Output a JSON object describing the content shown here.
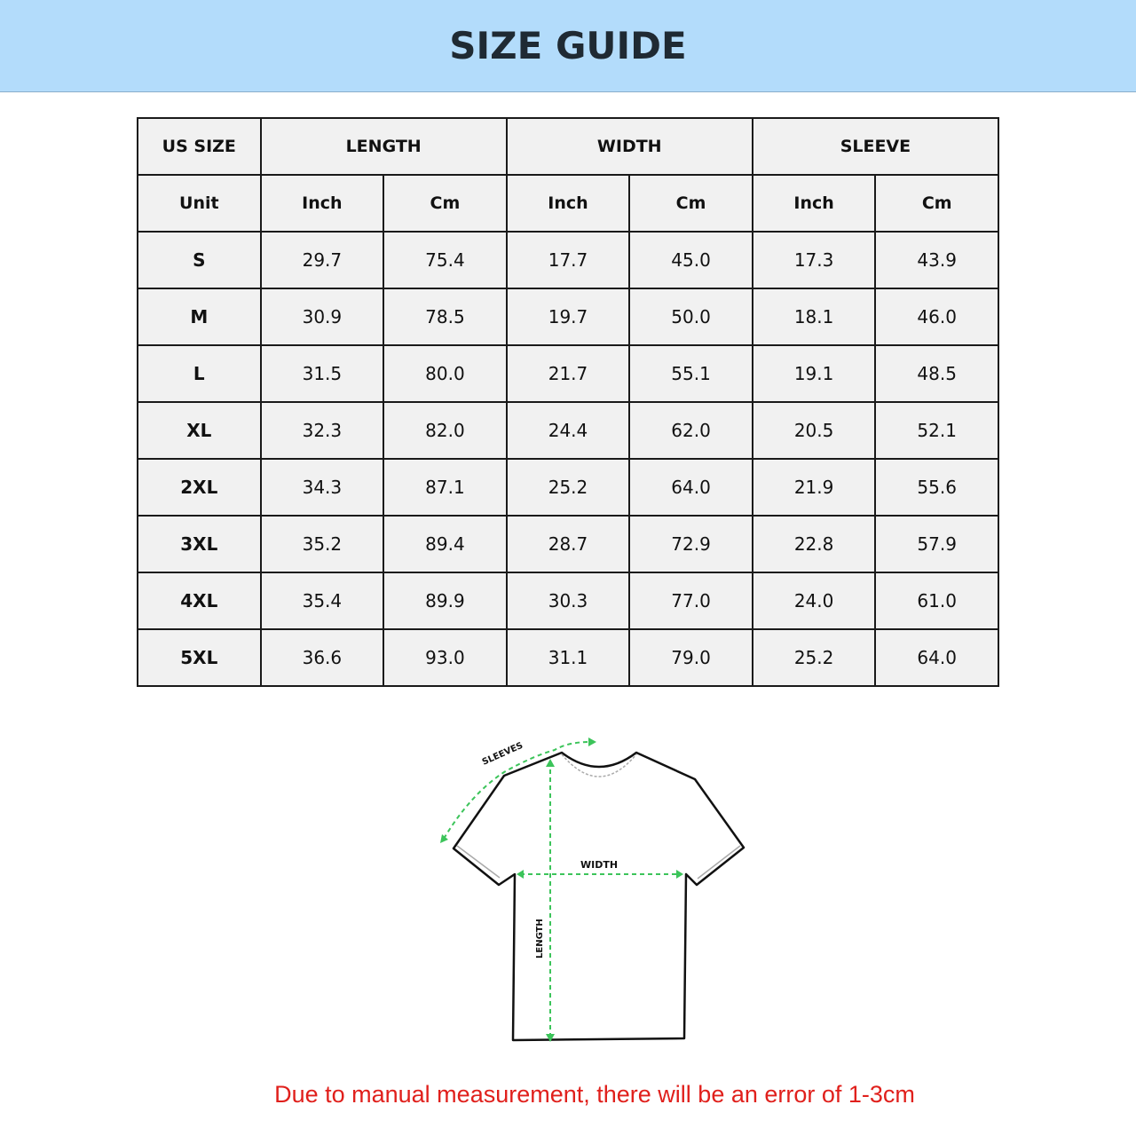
{
  "title": "SIZE GUIDE",
  "table": {
    "group_headers": [
      "US SIZE",
      "LENGTH",
      "WIDTH",
      "SLEEVE"
    ],
    "unit_row": [
      "Unit",
      "Inch",
      "Cm",
      "Inch",
      "Cm",
      "Inch",
      "Cm"
    ],
    "rows": [
      [
        "S",
        "29.7",
        "75.4",
        "17.7",
        "45.0",
        "17.3",
        "43.9"
      ],
      [
        "M",
        "30.9",
        "78.5",
        "19.7",
        "50.0",
        "18.1",
        "46.0"
      ],
      [
        "L",
        "31.5",
        "80.0",
        "21.7",
        "55.1",
        "19.1",
        "48.5"
      ],
      [
        "XL",
        "32.3",
        "82.0",
        "24.4",
        "62.0",
        "20.5",
        "52.1"
      ],
      [
        "2XL",
        "34.3",
        "87.1",
        "25.2",
        "64.0",
        "21.9",
        "55.6"
      ],
      [
        "3XL",
        "35.2",
        "89.4",
        "28.7",
        "72.9",
        "22.8",
        "57.9"
      ],
      [
        "4XL",
        "35.4",
        "89.9",
        "30.3",
        "77.0",
        "24.0",
        "61.0"
      ],
      [
        "5XL",
        "36.6",
        "93.0",
        "31.1",
        "79.0",
        "25.2",
        "64.0"
      ]
    ]
  },
  "diagram": {
    "sleeves_label": "SLEEVES",
    "width_label": "WIDTH",
    "length_label": "LENGTH",
    "measure_color": "#3cc45a"
  },
  "note": "Due to manual measurement, there will be an error of 1-3cm",
  "colors": {
    "banner": "#b3dcfb",
    "note": "#e0201c"
  }
}
